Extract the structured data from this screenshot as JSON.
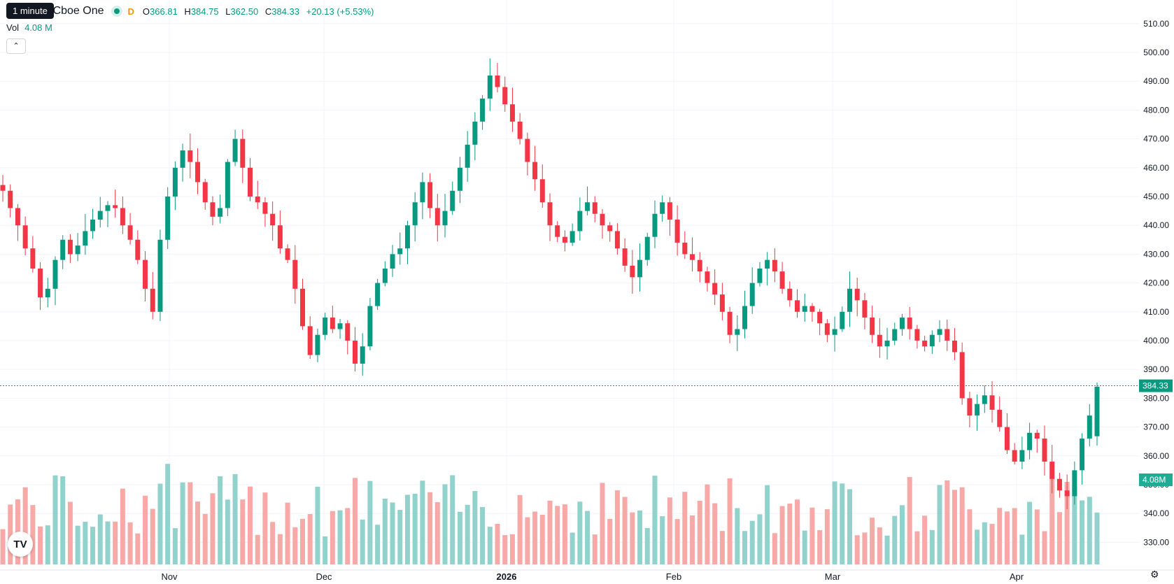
{
  "header": {
    "title": "nc. · 4h · Cboe One",
    "interval_badge": "D",
    "open_label": "O",
    "open": "366.81",
    "high_label": "H",
    "high": "384.75",
    "low_label": "L",
    "low": "362.50",
    "close_label": "C",
    "close": "384.33",
    "change": "+20.13 (+5.53%)",
    "tooltip": "1 minute"
  },
  "volume_legend": {
    "label": "Vol",
    "value": "4.08 M"
  },
  "collapse_icon": "chevron-up-icon",
  "logo_text": "TV",
  "settings_icon": "gear-icon",
  "colors": {
    "up": "#089981",
    "down": "#f23645",
    "vol_up": "#92d2cc",
    "vol_down": "#f7a9a7",
    "grid": "#f0f3fa"
  },
  "chart_data": {
    "type": "candlestick",
    "x_tick_labels": [
      "Nov",
      "Dec",
      "2026",
      "Feb",
      "Mar",
      "Apr"
    ],
    "y_tick_labels": [
      "510.00",
      "500.00",
      "490.00",
      "480.00",
      "470.00",
      "460.00",
      "450.00",
      "440.00",
      "430.00",
      "420.00",
      "410.00",
      "400.00",
      "390.00",
      "380.00",
      "370.00",
      "360.00",
      "350.00",
      "340.00",
      "330.00"
    ],
    "ylim": [
      320,
      514
    ],
    "last_price": 384.33,
    "last_price_label": "384.33",
    "last_volume_label": "4.08M",
    "grid": true,
    "close_series": [
      452,
      446,
      440,
      432,
      425,
      415,
      418,
      428,
      435,
      430,
      433,
      438,
      442,
      445,
      447,
      446,
      440,
      435,
      428,
      418,
      410,
      435,
      450,
      460,
      466,
      462,
      455,
      448,
      443,
      446,
      462,
      470,
      460,
      450,
      448,
      444,
      440,
      432,
      428,
      418,
      405,
      395,
      402,
      408,
      404,
      406,
      400,
      392,
      398,
      412,
      420,
      425,
      430,
      432,
      440,
      448,
      455,
      446,
      440,
      445,
      452,
      460,
      468,
      476,
      484,
      492,
      488,
      482,
      476,
      470,
      462,
      456,
      448,
      440,
      436,
      434,
      438,
      445,
      448,
      444,
      440,
      438,
      432,
      426,
      422,
      428,
      436,
      444,
      448,
      442,
      434,
      430,
      428,
      424,
      420,
      416,
      410,
      402,
      404,
      412,
      420,
      425,
      428,
      424,
      418,
      414,
      410,
      412,
      410,
      406,
      402,
      404,
      410,
      418,
      414,
      408,
      402,
      398,
      400,
      404,
      408,
      404,
      400,
      398,
      402,
      404,
      400,
      396,
      380,
      374,
      378,
      381,
      376,
      370,
      362,
      358,
      362,
      368,
      366,
      358,
      352,
      348,
      346,
      355,
      366,
      374,
      384
    ]
  }
}
